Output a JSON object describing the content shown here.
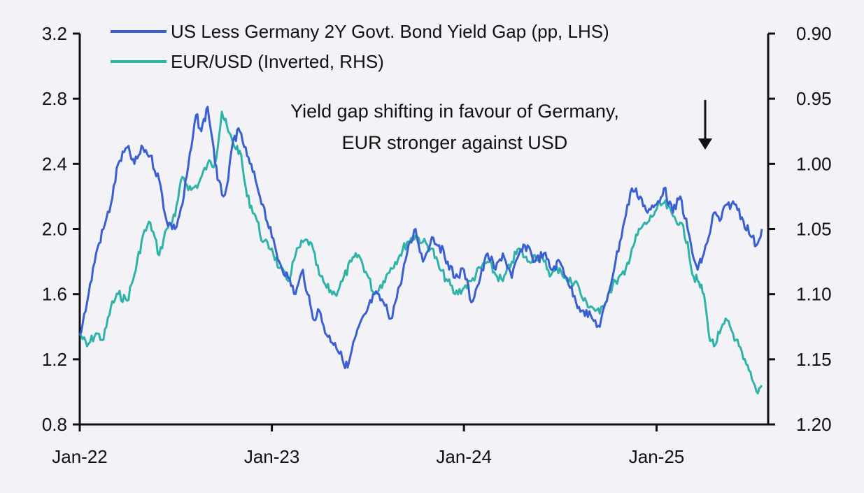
{
  "chart_data": {
    "type": "line",
    "title": "",
    "legend_position": "top",
    "grid": false,
    "x_axis": {
      "type": "date",
      "range": [
        "2022-01-01",
        "2025-08-01"
      ],
      "ticks": [
        {
          "label": "Jan-22",
          "date": "2022-01-01"
        },
        {
          "label": "Jan-23",
          "date": "2023-01-01"
        },
        {
          "label": "Jan-24",
          "date": "2024-01-01"
        },
        {
          "label": "Jan-25",
          "date": "2025-01-01"
        }
      ]
    },
    "y_left": {
      "range": [
        0.8,
        3.2
      ],
      "ticks": [
        "0.8",
        "1.2",
        "1.6",
        "2.0",
        "2.4",
        "2.8",
        "3.2"
      ]
    },
    "y_right": {
      "inverted": true,
      "range": [
        0.9,
        1.2
      ],
      "ticks": [
        "0.90",
        "0.95",
        "1.00",
        "1.05",
        "1.10",
        "1.15",
        "1.20"
      ]
    },
    "series": [
      {
        "name": "US Less Germany 2Y Govt. Bond Yield Gap (pp, LHS)",
        "axis": "left",
        "color": "#3a5fd0",
        "points": [
          [
            "2022-01-01",
            1.35
          ],
          [
            "2022-01-15",
            1.55
          ],
          [
            "2022-02-01",
            1.85
          ],
          [
            "2022-02-15",
            2.0
          ],
          [
            "2022-03-01",
            2.15
          ],
          [
            "2022-03-15",
            2.4
          ],
          [
            "2022-04-01",
            2.5
          ],
          [
            "2022-04-15",
            2.4
          ],
          [
            "2022-05-01",
            2.5
          ],
          [
            "2022-05-15",
            2.45
          ],
          [
            "2022-06-01",
            2.3
          ],
          [
            "2022-06-15",
            2.05
          ],
          [
            "2022-07-01",
            2.0
          ],
          [
            "2022-07-15",
            2.15
          ],
          [
            "2022-08-01",
            2.5
          ],
          [
            "2022-08-10",
            2.7
          ],
          [
            "2022-08-20",
            2.6
          ],
          [
            "2022-09-01",
            2.75
          ],
          [
            "2022-09-10",
            2.55
          ],
          [
            "2022-09-20",
            2.3
          ],
          [
            "2022-10-01",
            2.2
          ],
          [
            "2022-10-10",
            2.3
          ],
          [
            "2022-10-20",
            2.55
          ],
          [
            "2022-11-01",
            2.6
          ],
          [
            "2022-11-15",
            2.45
          ],
          [
            "2022-12-01",
            2.3
          ],
          [
            "2022-12-15",
            2.15
          ],
          [
            "2023-01-01",
            1.95
          ],
          [
            "2023-01-15",
            1.8
          ],
          [
            "2023-02-01",
            1.7
          ],
          [
            "2023-02-15",
            1.6
          ],
          [
            "2023-03-01",
            1.75
          ],
          [
            "2023-03-10",
            1.6
          ],
          [
            "2023-03-20",
            1.45
          ],
          [
            "2023-04-01",
            1.5
          ],
          [
            "2023-04-15",
            1.35
          ],
          [
            "2023-05-01",
            1.3
          ],
          [
            "2023-05-15",
            1.2
          ],
          [
            "2023-05-25",
            1.15
          ],
          [
            "2023-06-10",
            1.35
          ],
          [
            "2023-07-01",
            1.5
          ],
          [
            "2023-07-15",
            1.6
          ],
          [
            "2023-08-01",
            1.55
          ],
          [
            "2023-08-15",
            1.45
          ],
          [
            "2023-09-01",
            1.65
          ],
          [
            "2023-09-15",
            1.85
          ],
          [
            "2023-10-01",
            2.0
          ],
          [
            "2023-10-15",
            1.8
          ],
          [
            "2023-11-01",
            1.95
          ],
          [
            "2023-11-15",
            1.9
          ],
          [
            "2023-12-01",
            1.8
          ],
          [
            "2023-12-15",
            1.7
          ],
          [
            "2024-01-01",
            1.75
          ],
          [
            "2024-01-15",
            1.55
          ],
          [
            "2024-02-01",
            1.7
          ],
          [
            "2024-02-15",
            1.85
          ],
          [
            "2024-03-01",
            1.75
          ],
          [
            "2024-03-15",
            1.85
          ],
          [
            "2024-04-01",
            1.7
          ],
          [
            "2024-04-15",
            1.85
          ],
          [
            "2024-05-01",
            1.9
          ],
          [
            "2024-05-15",
            1.8
          ],
          [
            "2024-06-01",
            1.85
          ],
          [
            "2024-06-15",
            1.75
          ],
          [
            "2024-07-01",
            1.8
          ],
          [
            "2024-07-15",
            1.7
          ],
          [
            "2024-08-01",
            1.55
          ],
          [
            "2024-08-15",
            1.5
          ],
          [
            "2024-09-01",
            1.45
          ],
          [
            "2024-09-15",
            1.4
          ],
          [
            "2024-10-01",
            1.6
          ],
          [
            "2024-10-15",
            1.8
          ],
          [
            "2024-11-01",
            2.05
          ],
          [
            "2024-11-15",
            2.25
          ],
          [
            "2024-12-01",
            2.2
          ],
          [
            "2024-12-15",
            2.1
          ],
          [
            "2025-01-01",
            2.15
          ],
          [
            "2025-01-15",
            2.25
          ],
          [
            "2025-02-01",
            2.1
          ],
          [
            "2025-02-15",
            2.2
          ],
          [
            "2025-03-01",
            2.0
          ],
          [
            "2025-03-10",
            1.85
          ],
          [
            "2025-03-20",
            1.75
          ],
          [
            "2025-04-01",
            1.85
          ],
          [
            "2025-04-10",
            1.95
          ],
          [
            "2025-04-20",
            2.1
          ],
          [
            "2025-05-01",
            2.05
          ],
          [
            "2025-05-15",
            2.15
          ],
          [
            "2025-06-01",
            2.15
          ],
          [
            "2025-06-15",
            2.05
          ],
          [
            "2025-07-01",
            1.95
          ],
          [
            "2025-07-10",
            1.9
          ],
          [
            "2025-07-20",
            2.0
          ]
        ]
      },
      {
        "name": "EUR/USD (Inverted, RHS)",
        "axis": "right",
        "color": "#2fb3a8",
        "points": [
          [
            "2022-01-01",
            1.13
          ],
          [
            "2022-01-15",
            1.14
          ],
          [
            "2022-02-01",
            1.13
          ],
          [
            "2022-02-15",
            1.135
          ],
          [
            "2022-03-01",
            1.11
          ],
          [
            "2022-03-15",
            1.1
          ],
          [
            "2022-04-01",
            1.105
          ],
          [
            "2022-04-15",
            1.085
          ],
          [
            "2022-05-01",
            1.055
          ],
          [
            "2022-05-15",
            1.045
          ],
          [
            "2022-06-01",
            1.07
          ],
          [
            "2022-06-15",
            1.05
          ],
          [
            "2022-07-01",
            1.04
          ],
          [
            "2022-07-15",
            1.01
          ],
          [
            "2022-08-01",
            1.02
          ],
          [
            "2022-08-15",
            1.015
          ],
          [
            "2022-09-01",
            1.0
          ],
          [
            "2022-09-15",
            1.0
          ],
          [
            "2022-09-28",
            0.96
          ],
          [
            "2022-10-10",
            0.975
          ],
          [
            "2022-10-20",
            0.985
          ],
          [
            "2022-11-01",
            0.99
          ],
          [
            "2022-11-15",
            1.025
          ],
          [
            "2022-12-01",
            1.04
          ],
          [
            "2022-12-15",
            1.06
          ],
          [
            "2023-01-01",
            1.065
          ],
          [
            "2023-01-15",
            1.08
          ],
          [
            "2023-02-01",
            1.09
          ],
          [
            "2023-02-15",
            1.07
          ],
          [
            "2023-03-01",
            1.06
          ],
          [
            "2023-03-15",
            1.06
          ],
          [
            "2023-04-01",
            1.085
          ],
          [
            "2023-04-15",
            1.095
          ],
          [
            "2023-05-01",
            1.1
          ],
          [
            "2023-05-15",
            1.09
          ],
          [
            "2023-06-01",
            1.075
          ],
          [
            "2023-06-15",
            1.07
          ],
          [
            "2023-07-01",
            1.085
          ],
          [
            "2023-07-15",
            1.1
          ],
          [
            "2023-08-01",
            1.09
          ],
          [
            "2023-08-15",
            1.08
          ],
          [
            "2023-09-01",
            1.07
          ],
          [
            "2023-09-15",
            1.06
          ],
          [
            "2023-10-01",
            1.055
          ],
          [
            "2023-10-15",
            1.06
          ],
          [
            "2023-11-01",
            1.065
          ],
          [
            "2023-11-15",
            1.08
          ],
          [
            "2023-12-01",
            1.09
          ],
          [
            "2023-12-15",
            1.1
          ],
          [
            "2024-01-01",
            1.095
          ],
          [
            "2024-01-15",
            1.09
          ],
          [
            "2024-02-01",
            1.08
          ],
          [
            "2024-02-15",
            1.075
          ],
          [
            "2024-03-01",
            1.085
          ],
          [
            "2024-03-15",
            1.09
          ],
          [
            "2024-04-01",
            1.075
          ],
          [
            "2024-04-15",
            1.065
          ],
          [
            "2024-05-01",
            1.075
          ],
          [
            "2024-05-15",
            1.07
          ],
          [
            "2024-06-01",
            1.075
          ],
          [
            "2024-06-15",
            1.085
          ],
          [
            "2024-07-01",
            1.08
          ],
          [
            "2024-07-15",
            1.09
          ],
          [
            "2024-08-01",
            1.09
          ],
          [
            "2024-08-15",
            1.105
          ],
          [
            "2024-09-01",
            1.11
          ],
          [
            "2024-09-15",
            1.115
          ],
          [
            "2024-10-01",
            1.1
          ],
          [
            "2024-10-15",
            1.09
          ],
          [
            "2024-11-01",
            1.085
          ],
          [
            "2024-11-15",
            1.065
          ],
          [
            "2024-12-01",
            1.05
          ],
          [
            "2024-12-15",
            1.045
          ],
          [
            "2025-01-01",
            1.035
          ],
          [
            "2025-01-15",
            1.03
          ],
          [
            "2025-02-01",
            1.04
          ],
          [
            "2025-02-15",
            1.045
          ],
          [
            "2025-03-01",
            1.06
          ],
          [
            "2025-03-10",
            1.085
          ],
          [
            "2025-03-20",
            1.09
          ],
          [
            "2025-04-01",
            1.1
          ],
          [
            "2025-04-10",
            1.13
          ],
          [
            "2025-04-20",
            1.14
          ],
          [
            "2025-05-01",
            1.13
          ],
          [
            "2025-05-15",
            1.12
          ],
          [
            "2025-06-01",
            1.135
          ],
          [
            "2025-06-15",
            1.15
          ],
          [
            "2025-07-01",
            1.165
          ],
          [
            "2025-07-10",
            1.175
          ],
          [
            "2025-07-20",
            1.17
          ]
        ]
      }
    ],
    "annotations": [
      {
        "text": "Yield gap shifting in favour of Germany,"
      },
      {
        "text": "EUR stronger against  USD"
      }
    ]
  }
}
